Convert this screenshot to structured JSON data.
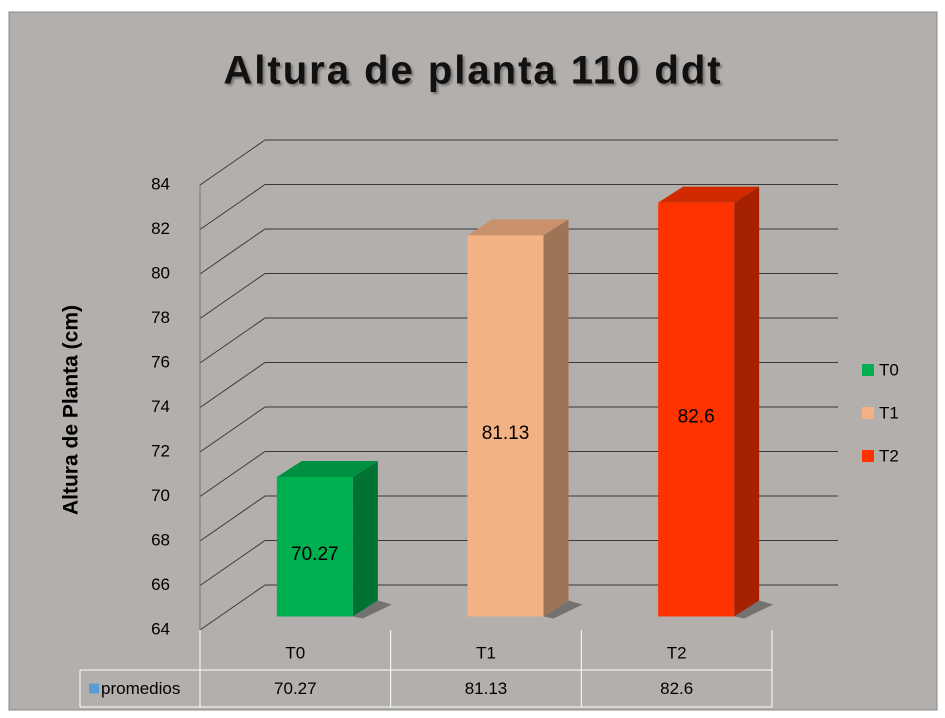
{
  "chart_data": {
    "type": "bar3d",
    "title": "Altura de planta 110 ddt",
    "ylabel": "Altura de Planta (cm)",
    "categories": [
      "T0",
      "T1",
      "T2"
    ],
    "series": [
      {
        "name": "promedios",
        "color": "#5b9bd5",
        "colors": [
          "#00b050",
          "#f4b183",
          "#ff3300"
        ],
        "values": [
          70.27,
          81.13,
          82.6
        ]
      }
    ],
    "ylim": [
      64,
      84
    ],
    "yticks": [
      64,
      66,
      68,
      70,
      72,
      74,
      76,
      78,
      80,
      82,
      84
    ],
    "grid": true,
    "legend": "right",
    "data_table": true
  }
}
